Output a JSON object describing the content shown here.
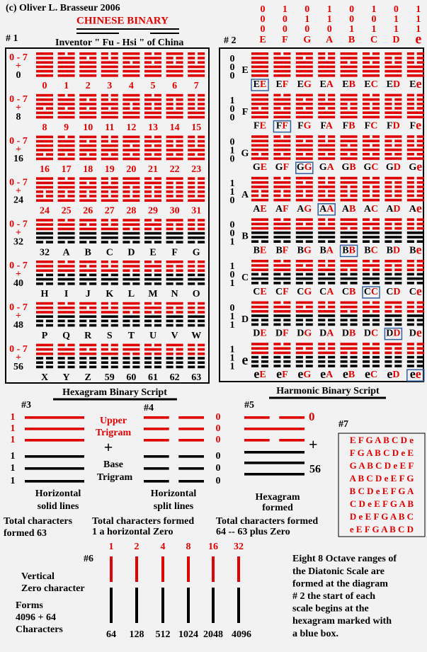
{
  "header": {
    "copyright": "(c) Oliver L. Brasseur  2006",
    "title": "CHINESE BINARY",
    "subtitle": "Inventor \" Fu - Hsi \" of China"
  },
  "panel1": {
    "label": "# 1",
    "rows": [
      {
        "range": "0 - 7",
        "plus": "+",
        "offset": "0",
        "labels": [
          "0",
          "1",
          "2",
          "3",
          "4",
          "5",
          "6",
          "7"
        ]
      },
      {
        "range": "0 - 7",
        "plus": "+",
        "offset": "8",
        "labels": [
          "8",
          "9",
          "10",
          "11",
          "12",
          "13",
          "14",
          "15"
        ]
      },
      {
        "range": "0 - 7",
        "plus": "+",
        "offset": "16",
        "labels": [
          "16",
          "17",
          "18",
          "19",
          "20",
          "21",
          "22",
          "23"
        ]
      },
      {
        "range": "0 - 7",
        "plus": "+",
        "offset": "24",
        "labels": [
          "24",
          "25",
          "26",
          "27",
          "28",
          "29",
          "30",
          "31"
        ]
      },
      {
        "range": "0 - 7",
        "plus": "+",
        "offset": "32",
        "labels": [
          "32",
          "A",
          "B",
          "C",
          "D",
          "E",
          "F",
          "G"
        ]
      },
      {
        "range": "0 - 7",
        "plus": "+",
        "offset": "40",
        "labels": [
          "H",
          "I",
          "J",
          "K",
          "L",
          "M",
          "N",
          "O"
        ]
      },
      {
        "range": "0 - 7",
        "plus": "+",
        "offset": "48",
        "labels": [
          "P",
          "Q",
          "R",
          "S",
          "T",
          "U",
          "V",
          "W"
        ]
      },
      {
        "range": "0 - 7",
        "plus": "+",
        "offset": "56",
        "labels": [
          "X",
          "Y",
          "Z",
          "59",
          "60",
          "61",
          "62",
          "63"
        ]
      }
    ]
  },
  "panel2": {
    "label": "# 2",
    "header_bits": [
      [
        "0",
        "1",
        "0",
        "1",
        "0",
        "1",
        "0",
        "1"
      ],
      [
        "0",
        "0",
        "1",
        "1",
        "0",
        "0",
        "1",
        "1"
      ],
      [
        "0",
        "0",
        "0",
        "0",
        "1",
        "1",
        "1",
        "1"
      ]
    ],
    "notes": [
      "E",
      "F",
      "G",
      "A",
      "B",
      "C",
      "D",
      "e"
    ],
    "rows": [
      {
        "bits": [
          "0",
          "0",
          "0"
        ],
        "note": "E",
        "boxed": 0,
        "cells": [
          [
            "E",
            "E"
          ],
          [
            "E",
            "F"
          ],
          [
            "E",
            "G"
          ],
          [
            "E",
            "A"
          ],
          [
            "E",
            "B"
          ],
          [
            "E",
            "C"
          ],
          [
            "E",
            "D"
          ],
          [
            "E",
            "e"
          ]
        ]
      },
      {
        "bits": [
          "1",
          "0",
          "0"
        ],
        "note": "F",
        "boxed": 1,
        "cells": [
          [
            "F",
            "E"
          ],
          [
            "F",
            "F"
          ],
          [
            "F",
            "G"
          ],
          [
            "F",
            "A"
          ],
          [
            "F",
            "B"
          ],
          [
            "F",
            "C"
          ],
          [
            "F",
            "D"
          ],
          [
            "F",
            "e"
          ]
        ]
      },
      {
        "bits": [
          "0",
          "1",
          "0"
        ],
        "note": "G",
        "boxed": 2,
        "cells": [
          [
            "G",
            "E"
          ],
          [
            "G",
            "F"
          ],
          [
            "G",
            "G"
          ],
          [
            "G",
            "A"
          ],
          [
            "G",
            "B"
          ],
          [
            "G",
            "C"
          ],
          [
            "G",
            "D"
          ],
          [
            "G",
            "e"
          ]
        ]
      },
      {
        "bits": [
          "1",
          "1",
          "0"
        ],
        "note": "A",
        "boxed": 3,
        "cells": [
          [
            "A",
            "E"
          ],
          [
            "A",
            "F"
          ],
          [
            "A",
            "G"
          ],
          [
            "A",
            "A"
          ],
          [
            "A",
            "B"
          ],
          [
            "A",
            "C"
          ],
          [
            "A",
            "D"
          ],
          [
            "A",
            "e"
          ]
        ]
      },
      {
        "bits": [
          "0",
          "0",
          "1"
        ],
        "note": "B",
        "boxed": 4,
        "cells": [
          [
            "B",
            "E"
          ],
          [
            "B",
            "F"
          ],
          [
            "B",
            "G"
          ],
          [
            "B",
            "A"
          ],
          [
            "B",
            "B"
          ],
          [
            "B",
            "C"
          ],
          [
            "B",
            "D"
          ],
          [
            "B",
            "e"
          ]
        ]
      },
      {
        "bits": [
          "1",
          "0",
          "1"
        ],
        "note": "C",
        "boxed": 5,
        "cells": [
          [
            "C",
            "E"
          ],
          [
            "C",
            "F"
          ],
          [
            "C",
            "G"
          ],
          [
            "C",
            "A"
          ],
          [
            "C",
            "B"
          ],
          [
            "C",
            "C"
          ],
          [
            "C",
            "D"
          ],
          [
            "C",
            "e"
          ]
        ]
      },
      {
        "bits": [
          "0",
          "1",
          "1"
        ],
        "note": "D",
        "boxed": 6,
        "cells": [
          [
            "D",
            "E"
          ],
          [
            "D",
            "F"
          ],
          [
            "D",
            "G"
          ],
          [
            "D",
            "A"
          ],
          [
            "D",
            "B"
          ],
          [
            "D",
            "C"
          ],
          [
            "D",
            "D"
          ],
          [
            "D",
            "e"
          ]
        ]
      },
      {
        "bits": [
          "1",
          "1",
          "1"
        ],
        "note": "e",
        "boxed": 7,
        "cells": [
          [
            "e",
            "E"
          ],
          [
            "e",
            "F"
          ],
          [
            "e",
            "G"
          ],
          [
            "e",
            "A"
          ],
          [
            "e",
            "B"
          ],
          [
            "e",
            "C"
          ],
          [
            "e",
            "D"
          ],
          [
            "e",
            "e"
          ]
        ]
      }
    ]
  },
  "captions": {
    "left": "Hexagram Binary Script",
    "right": "Harmonic Binary Script"
  },
  "section3": {
    "label": "#3",
    "bits": [
      "1",
      "1",
      "1",
      "1",
      "1",
      "1"
    ],
    "upper": [
      "Upper",
      "Trigram"
    ],
    "plus": "+",
    "base": [
      "Base",
      "Trigram"
    ],
    "desc": [
      "Horizontal",
      "solid lines"
    ],
    "total": [
      "Total characters",
      "formed  63"
    ]
  },
  "section4": {
    "label": "#4",
    "bits": [
      "0",
      "0",
      "0",
      "0",
      "0",
      "0"
    ],
    "desc": [
      "Horizontal",
      "split lines"
    ],
    "total": [
      "Total characters formed",
      "1 a horizontal  Zero"
    ]
  },
  "section5": {
    "label": "#5",
    "zero": "0",
    "plus": "+",
    "num": "56",
    "desc": [
      "Hexagram",
      "formed"
    ],
    "total": [
      "Total characters formed",
      "64  -- 63  plus  Zero"
    ]
  },
  "section7": {
    "label": "#7",
    "rows": [
      "E F G A B C D e",
      "F G A B C D e E",
      "G A B C D e E F",
      "A B C D e E F G",
      "B C D e E F G A",
      "C D e E F G A B",
      "D e E F G A B C",
      "e E F G A B C D"
    ]
  },
  "section6": {
    "label": "#6",
    "desc": [
      "Vertical",
      "Zero character"
    ],
    "forms": [
      "Forms",
      "4096 + 64",
      "Characters"
    ],
    "top": [
      "1",
      "2",
      "4",
      "8",
      "16",
      "32"
    ],
    "bottom": [
      "64",
      "128",
      "512",
      "1024",
      "2048",
      "4096"
    ]
  },
  "note": [
    "Eight 8  Octave ranges of",
    "the Diatonic Scale are",
    "formed at the diagram",
    "# 2 the start of each",
    "scale begins at the",
    "hexagram marked with",
    "a blue box."
  ]
}
